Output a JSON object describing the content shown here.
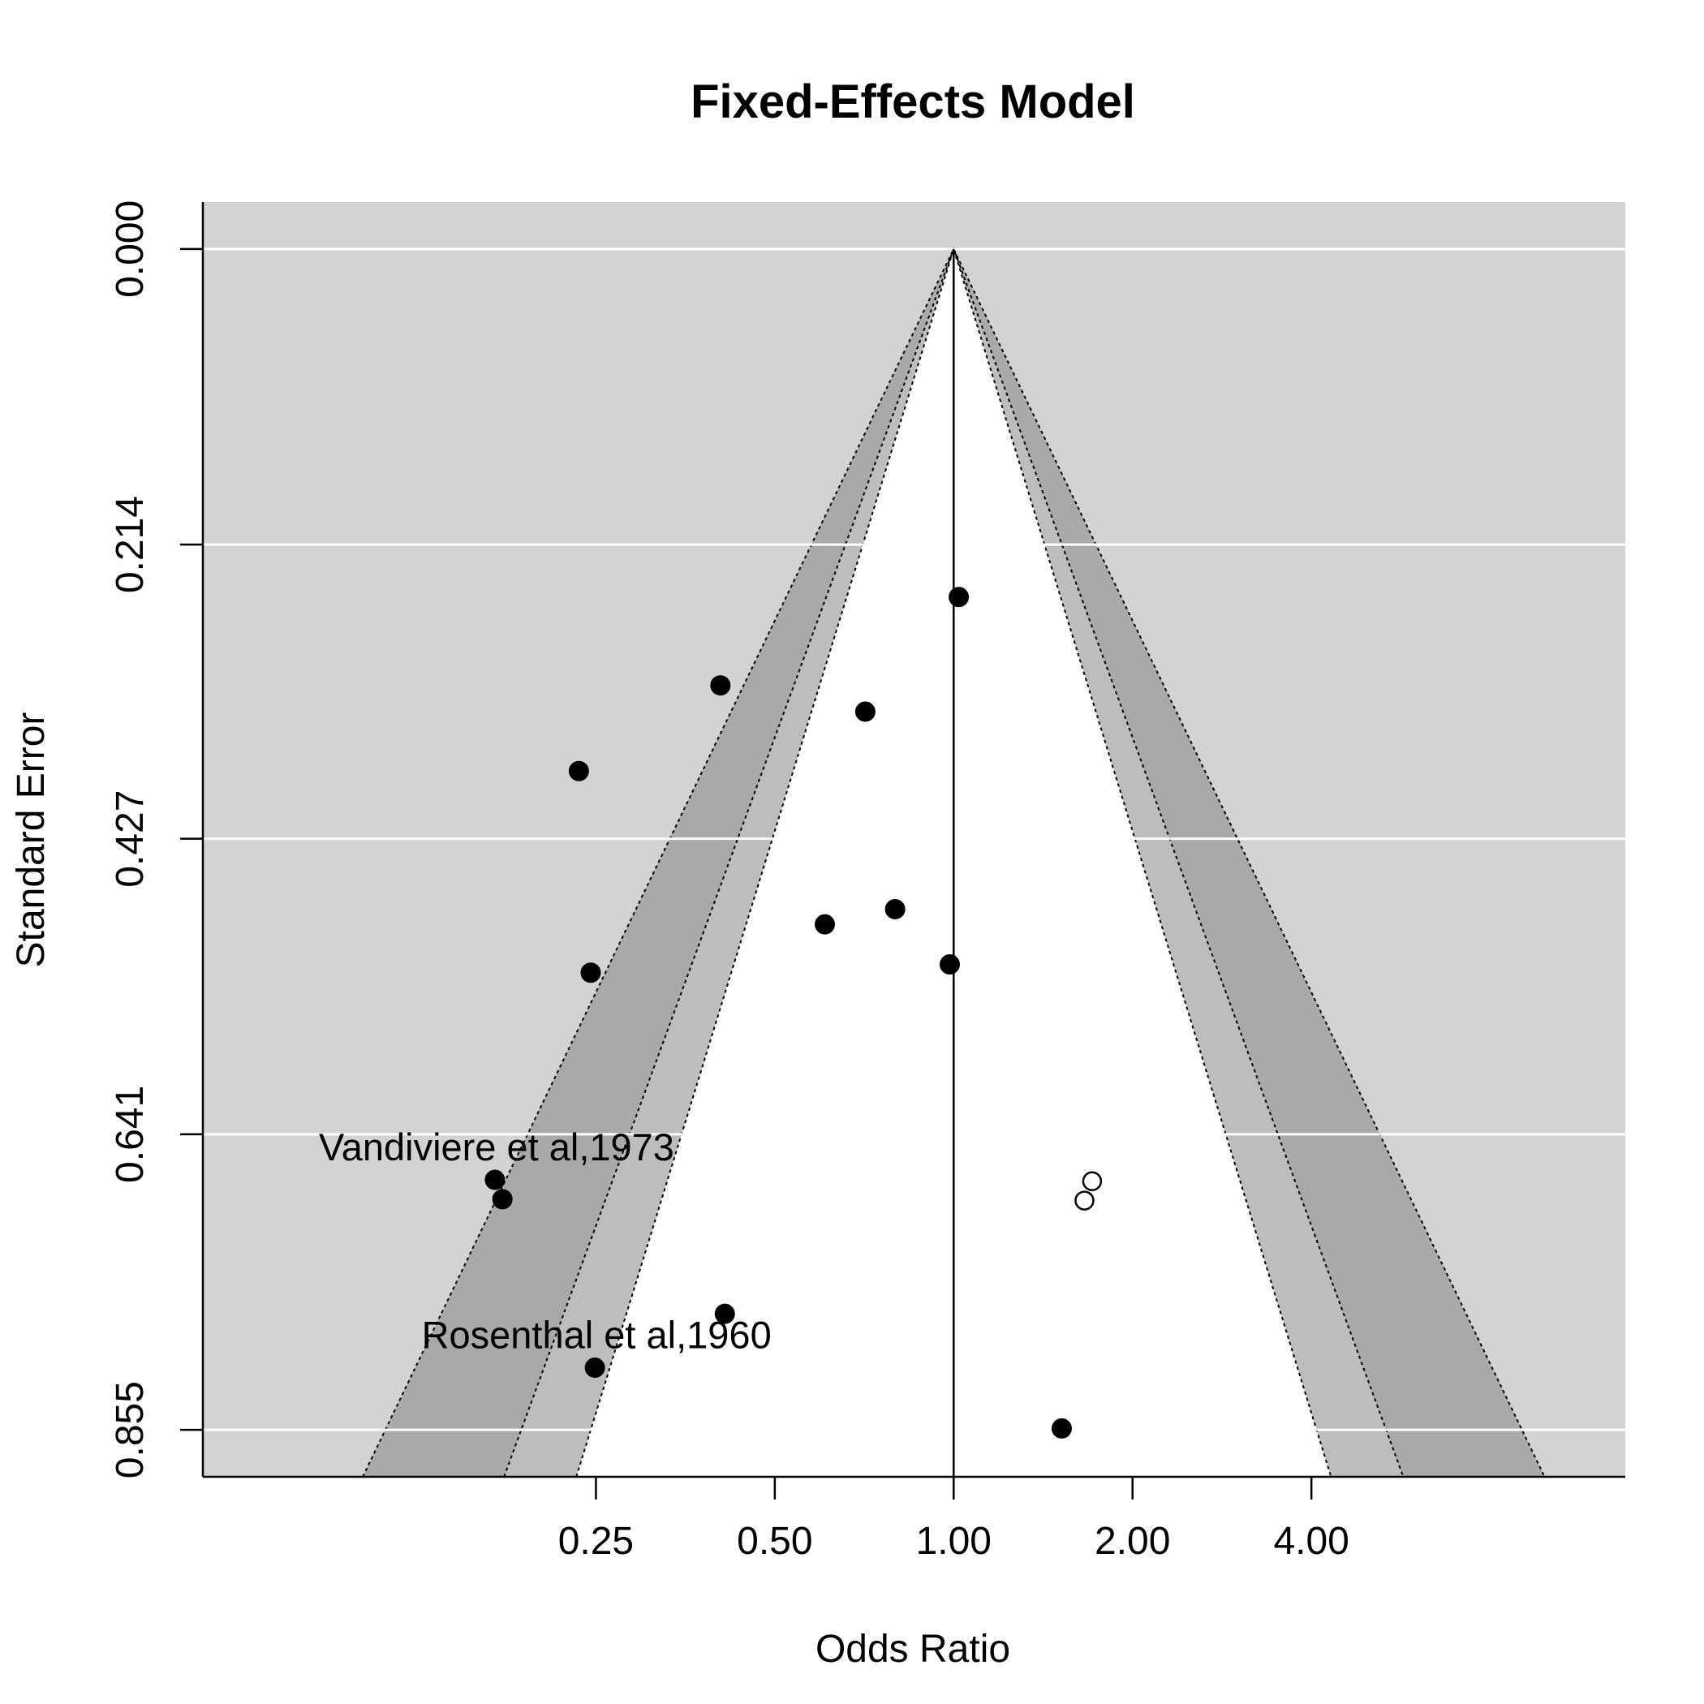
{
  "chart_data": {
    "type": "scatter",
    "title": "Fixed-Effects Model",
    "xlabel": "Odds Ratio",
    "ylabel": "Standard Error",
    "x_scale": "log",
    "x_ticks": [
      "0.25",
      "0.50",
      "1.00",
      "2.00",
      "4.00"
    ],
    "x_tick_values": [
      0.25,
      0.5,
      1,
      2,
      4
    ],
    "xlim": [
      0.0545,
      13.5
    ],
    "y_ticks": [
      "0.000",
      "0.214",
      "0.427",
      "0.641",
      "0.855"
    ],
    "y_tick_values": [
      0,
      0.214,
      0.427,
      0.641,
      0.855
    ],
    "ylim": [
      0.889,
      -0.034
    ],
    "y_reversed": true,
    "grid": "horizontal",
    "reference_line_x": 1.0,
    "contour_levels": [
      0.9,
      0.95,
      0.99
    ],
    "colors": {
      "background": "#d3d3d3",
      "contour_inner": "#ffffff",
      "contour_mid": "#bdbdbd",
      "contour_outer": "#a9a9a9",
      "grid": "#ffffff",
      "points": "#000000"
    },
    "studies": [
      {
        "x": 1.02,
        "y": 0.252,
        "filled": true
      },
      {
        "x": 0.405,
        "y": 0.316,
        "filled": true
      },
      {
        "x": 0.71,
        "y": 0.335,
        "filled": true
      },
      {
        "x": 0.234,
        "y": 0.378,
        "filled": true
      },
      {
        "x": 0.797,
        "y": 0.478,
        "filled": true
      },
      {
        "x": 0.607,
        "y": 0.489,
        "filled": true
      },
      {
        "x": 0.985,
        "y": 0.518,
        "filled": true
      },
      {
        "x": 0.245,
        "y": 0.524,
        "filled": true
      },
      {
        "x": 0.169,
        "y": 0.674,
        "filled": true,
        "label": "Vandiviere et al,1973"
      },
      {
        "x": 0.174,
        "y": 0.688,
        "filled": true
      },
      {
        "x": 0.412,
        "y": 0.771,
        "filled": true
      },
      {
        "x": 0.249,
        "y": 0.81,
        "filled": true,
        "label": "Rosenthal et al,1960"
      },
      {
        "x": 1.52,
        "y": 0.854,
        "filled": true
      },
      {
        "x": 1.71,
        "y": 0.675,
        "filled": false
      },
      {
        "x": 1.66,
        "y": 0.689,
        "filled": false
      }
    ]
  }
}
